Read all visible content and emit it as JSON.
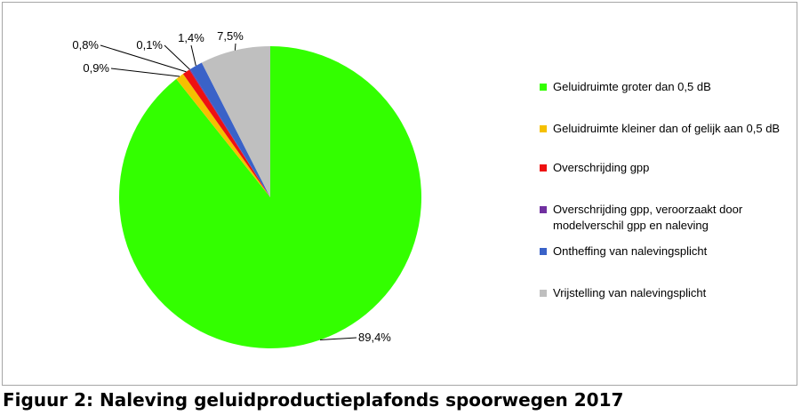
{
  "chart_data": {
    "type": "pie",
    "slices": [
      {
        "label": "Geluidruimte groter dan 0,5 dB",
        "value": 89.4,
        "display": "89,4%",
        "color": "#33ff00"
      },
      {
        "label": "Geluidruimte kleiner dan of gelijk aan 0,5 dB",
        "value": 0.9,
        "display": "0,9%",
        "color": "#f5c000"
      },
      {
        "label": "Overschrijding gpp",
        "value": 0.8,
        "display": "0,8%",
        "color": "#ee1111"
      },
      {
        "label": "Overschrijding gpp, veroorzaakt door modelverschil gpp en naleving",
        "value": 0.1,
        "display": "0,1%",
        "color": "#7030a0"
      },
      {
        "label": "Ontheffing van nalevingsplicht",
        "value": 1.4,
        "display": "1,4%",
        "color": "#3a62c8"
      },
      {
        "label": "Vrijstelling van nalevingsplicht",
        "value": 7.5,
        "display": "7,5%",
        "color": "#bfbfbf"
      }
    ],
    "legend_placement": "right"
  },
  "legend": {
    "items": [
      "Geluidruimte groter dan 0,5 dB",
      "Geluidruimte kleiner dan of gelijk aan 0,5 dB",
      "Overschrijding gpp",
      "Overschrijding gpp, veroorzaakt door modelverschil gpp en naleving",
      "Ontheffing van nalevingsplicht",
      "Vrijstelling van nalevingsplicht"
    ]
  },
  "caption": "Figuur 2: Naleving geluidproductieplafonds spoorwegen 2017"
}
